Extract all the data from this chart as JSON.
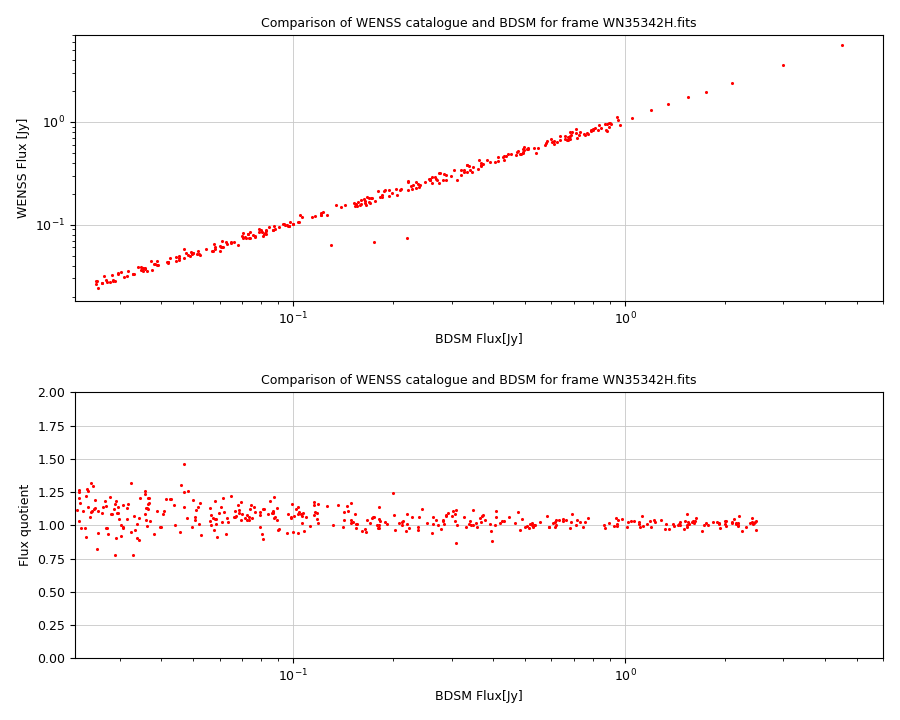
{
  "title": "Comparison of WENSS catalogue and BDSM for frame WN35342H.fits",
  "xlabel1": "BDSM Flux[Jy]",
  "ylabel1": "WENSS Flux [Jy]",
  "xlabel2": "BDSM Flux[Jy]",
  "ylabel2": "Flux quotient",
  "dot_color": "#ff0000",
  "dot_size": 5,
  "background_color": "#ffffff",
  "grid_color": "#c8c8c8",
  "ylim2": [
    0.0,
    2.0
  ],
  "yticks2": [
    0.0,
    0.25,
    0.5,
    0.75,
    1.0,
    1.25,
    1.5,
    1.75,
    2.0
  ],
  "xlim_log": [
    0.022,
    6.0
  ],
  "ylim1_log": [
    0.018,
    7.0
  ],
  "seed": 42
}
